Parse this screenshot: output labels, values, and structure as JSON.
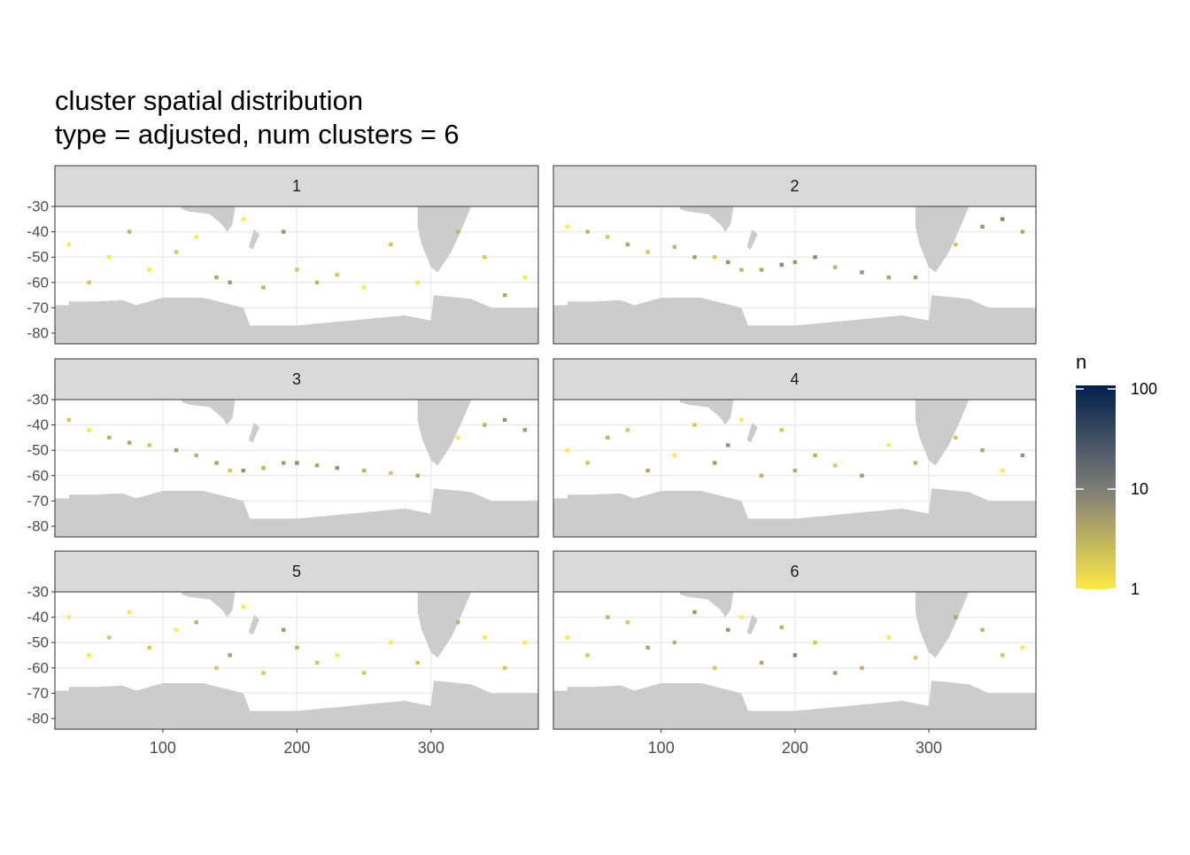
{
  "chart_data": {
    "type": "heatmap",
    "title": "cluster spatial distribution",
    "subtitle": "type = adjusted, num clusters = 6",
    "xlim": [
      19.5,
      380
    ],
    "ylim": [
      -84.2,
      -30
    ],
    "xticks": [
      100,
      200,
      300
    ],
    "yticks": [
      -30,
      -40,
      -50,
      -60,
      -70,
      -80
    ],
    "grid": true,
    "facets": [
      {
        "label": "1",
        "x": [
          30,
          45,
          60,
          75,
          90,
          110,
          125,
          140,
          150,
          160,
          175,
          190,
          200,
          215,
          230,
          250,
          270,
          290,
          320,
          340,
          355,
          370
        ],
        "y": [
          -45,
          -60,
          -50,
          -40,
          -55,
          -48,
          -42,
          -58,
          -60,
          -35,
          -62,
          -40,
          -55,
          -60,
          -57,
          -62,
          -45,
          -60,
          -40,
          -50,
          -65,
          -58
        ],
        "n": [
          1,
          2,
          1,
          3,
          1,
          2,
          1,
          4,
          5,
          1,
          3,
          6,
          2,
          3,
          2,
          1,
          2,
          1,
          3,
          2,
          4,
          1
        ]
      },
      {
        "label": "2",
        "x": [
          30,
          45,
          60,
          75,
          90,
          110,
          125,
          140,
          150,
          160,
          175,
          190,
          200,
          215,
          230,
          250,
          270,
          290,
          320,
          340,
          355,
          370
        ],
        "y": [
          -38,
          -40,
          -42,
          -45,
          -48,
          -46,
          -50,
          -50,
          -52,
          -55,
          -55,
          -53,
          -52,
          -50,
          -54,
          -56,
          -58,
          -58,
          -45,
          -38,
          -35,
          -40
        ],
        "n": [
          1,
          3,
          2,
          4,
          2,
          3,
          5,
          2,
          6,
          3,
          4,
          8,
          5,
          7,
          3,
          6,
          4,
          5,
          2,
          6,
          8,
          4
        ]
      },
      {
        "label": "3",
        "x": [
          30,
          45,
          60,
          75,
          90,
          110,
          125,
          140,
          150,
          160,
          175,
          190,
          200,
          215,
          230,
          250,
          270,
          290,
          320,
          340,
          355,
          370
        ],
        "y": [
          -38,
          -42,
          -45,
          -47,
          -48,
          -50,
          -52,
          -55,
          -58,
          -58,
          -57,
          -55,
          -55,
          -56,
          -57,
          -58,
          -59,
          -60,
          -45,
          -40,
          -38,
          -42
        ],
        "n": [
          2,
          1,
          3,
          4,
          2,
          5,
          3,
          4,
          2,
          6,
          3,
          5,
          7,
          4,
          6,
          3,
          2,
          4,
          1,
          3,
          6,
          5
        ]
      },
      {
        "label": "4",
        "x": [
          30,
          45,
          60,
          75,
          90,
          110,
          125,
          140,
          150,
          160,
          175,
          190,
          200,
          215,
          230,
          250,
          270,
          290,
          320,
          340,
          355,
          370
        ],
        "y": [
          -50,
          -55,
          -45,
          -42,
          -58,
          -52,
          -40,
          -55,
          -48,
          -38,
          -60,
          -42,
          -58,
          -52,
          -56,
          -60,
          -48,
          -55,
          -45,
          -50,
          -58,
          -52
        ],
        "n": [
          1,
          2,
          3,
          2,
          4,
          1,
          2,
          5,
          6,
          1,
          3,
          2,
          4,
          3,
          2,
          5,
          1,
          3,
          2,
          4,
          1,
          6
        ]
      },
      {
        "label": "5",
        "x": [
          30,
          45,
          60,
          75,
          90,
          110,
          125,
          140,
          150,
          160,
          175,
          190,
          200,
          215,
          230,
          250,
          270,
          290,
          320,
          340,
          355,
          370
        ],
        "y": [
          -40,
          -55,
          -48,
          -38,
          -52,
          -45,
          -42,
          -60,
          -55,
          -36,
          -62,
          -45,
          -52,
          -58,
          -55,
          -62,
          -50,
          -58,
          -42,
          -48,
          -60,
          -50
        ],
        "n": [
          1,
          1,
          2,
          1,
          2,
          1,
          3,
          2,
          4,
          1,
          2,
          5,
          3,
          2,
          1,
          2,
          1,
          2,
          3,
          1,
          2,
          1
        ]
      },
      {
        "label": "6",
        "x": [
          30,
          45,
          60,
          75,
          90,
          110,
          125,
          140,
          150,
          160,
          175,
          190,
          200,
          215,
          230,
          250,
          270,
          290,
          320,
          340,
          355,
          370
        ],
        "y": [
          -48,
          -55,
          -40,
          -42,
          -52,
          -50,
          -38,
          -60,
          -45,
          -40,
          -58,
          -44,
          -55,
          -50,
          -62,
          -60,
          -48,
          -56,
          -40,
          -45,
          -55,
          -52
        ],
        "n": [
          1,
          2,
          3,
          2,
          4,
          3,
          5,
          2,
          6,
          1,
          4,
          3,
          8,
          2,
          5,
          3,
          1,
          2,
          4,
          3,
          2,
          1
        ]
      }
    ],
    "colorbar": {
      "title": "n",
      "lim": [
        1,
        100
      ],
      "ticks": [
        1,
        10,
        100
      ],
      "log": true,
      "colors": [
        "#fde945",
        "#7c7b78",
        "#00204d"
      ]
    }
  }
}
